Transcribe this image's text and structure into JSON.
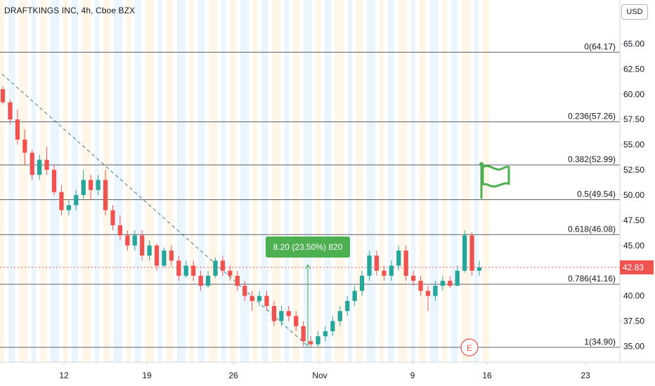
{
  "header": {
    "symbol_line": "DRAFTKINGS INC, 4h, Cboe BZX"
  },
  "currency": "USD",
  "colors": {
    "up": "#26a69a",
    "down": "#ef5350",
    "fib_line": "#5d606b",
    "price_line": "#ef5350",
    "measure": "#4caf50",
    "flag": "#4caf50",
    "earnings": "#ef5350",
    "trend": "#3e7f86"
  },
  "chart_data": {
    "type": "candlestick",
    "title": "DRAFTKINGS INC, 4h, Cboe BZX",
    "x_tick_labels": [
      "12",
      "19",
      "26",
      "Nov",
      "9",
      "16",
      "23"
    ],
    "y_tick_labels": [
      "65.00",
      "62.50",
      "60.00",
      "57.50",
      "55.00",
      "52.50",
      "50.00",
      "47.50",
      "45.00",
      "42.50",
      "40.00",
      "37.50",
      "35.00"
    ],
    "ylim": [
      33.5,
      66.5
    ],
    "last_price": "42.83",
    "fibonacci_levels": [
      {
        "label": "0(64.17)",
        "value": 64.17
      },
      {
        "label": "0.236(57.26)",
        "value": 57.26
      },
      {
        "label": "0.382(52.99)",
        "value": 52.99
      },
      {
        "label": "0.5(49.54)",
        "value": 49.54
      },
      {
        "label": "0.618(46.08)",
        "value": 46.08
      },
      {
        "label": "0.786(41.16)",
        "value": 41.16
      },
      {
        "label": "1(34.90)",
        "value": 34.9
      }
    ],
    "measure_label": "8.20 (23.50%) 820",
    "earnings_marker": "E",
    "candles": [
      [
        60.5,
        60.8,
        59.0,
        59.2
      ],
      [
        59.2,
        59.5,
        57.0,
        57.5
      ],
      [
        57.5,
        58.5,
        55.0,
        55.5
      ],
      [
        55.5,
        56.5,
        53.0,
        54.2
      ],
      [
        54.2,
        54.5,
        51.5,
        52.0
      ],
      [
        52.0,
        54.0,
        51.5,
        53.5
      ],
      [
        53.5,
        54.8,
        52.0,
        52.5
      ],
      [
        52.5,
        53.0,
        50.0,
        50.3
      ],
      [
        50.3,
        51.0,
        48.0,
        48.5
      ],
      [
        48.5,
        49.5,
        48.0,
        49.0
      ],
      [
        49.0,
        50.5,
        48.5,
        50.0
      ],
      [
        50.0,
        52.5,
        49.5,
        51.5
      ],
      [
        51.5,
        52.0,
        49.5,
        50.5
      ],
      [
        50.5,
        52.0,
        50.0,
        51.5
      ],
      [
        51.5,
        52.5,
        48.0,
        48.5
      ],
      [
        48.5,
        49.0,
        46.5,
        47.0
      ],
      [
        47.0,
        48.0,
        45.5,
        46.0
      ],
      [
        46.0,
        46.5,
        44.5,
        45.0
      ],
      [
        45.0,
        46.5,
        44.5,
        46.0
      ],
      [
        46.0,
        46.5,
        43.5,
        44.0
      ],
      [
        44.0,
        45.5,
        43.5,
        45.0
      ],
      [
        45.0,
        45.2,
        42.5,
        43.0
      ],
      [
        43.0,
        44.8,
        42.8,
        44.5
      ],
      [
        44.5,
        45.0,
        43.0,
        43.5
      ],
      [
        43.5,
        44.0,
        41.5,
        42.0
      ],
      [
        42.0,
        43.5,
        41.8,
        43.0
      ],
      [
        43.0,
        43.5,
        41.5,
        42.0
      ],
      [
        42.0,
        42.5,
        40.5,
        41.0
      ],
      [
        41.0,
        42.5,
        40.8,
        42.0
      ],
      [
        42.0,
        43.8,
        41.8,
        43.5
      ],
      [
        43.5,
        44.0,
        42.0,
        42.5
      ],
      [
        42.5,
        43.0,
        41.5,
        42.0
      ],
      [
        42.0,
        42.5,
        40.5,
        41.0
      ],
      [
        41.0,
        41.5,
        39.5,
        40.0
      ],
      [
        40.0,
        40.5,
        38.5,
        39.5
      ],
      [
        39.5,
        40.5,
        39.0,
        40.0
      ],
      [
        40.0,
        40.5,
        38.5,
        39.0
      ],
      [
        39.0,
        39.5,
        37.0,
        37.5
      ],
      [
        37.5,
        39.0,
        37.0,
        38.5
      ],
      [
        38.5,
        39.0,
        37.5,
        38.0
      ],
      [
        38.0,
        38.5,
        36.5,
        37.0
      ],
      [
        37.0,
        37.5,
        35.0,
        35.5
      ],
      [
        35.5,
        36.0,
        34.9,
        35.2
      ],
      [
        35.2,
        36.5,
        35.0,
        36.0
      ],
      [
        36.0,
        37.0,
        35.5,
        36.5
      ],
      [
        36.5,
        38.0,
        36.0,
        37.5
      ],
      [
        37.5,
        39.0,
        37.0,
        38.5
      ],
      [
        38.5,
        40.0,
        38.0,
        39.5
      ],
      [
        39.5,
        41.0,
        39.0,
        40.5
      ],
      [
        40.5,
        42.5,
        40.0,
        42.0
      ],
      [
        42.0,
        44.5,
        41.5,
        44.0
      ],
      [
        44.0,
        44.5,
        42.0,
        42.5
      ],
      [
        42.5,
        43.0,
        41.5,
        42.0
      ],
      [
        42.0,
        43.5,
        41.5,
        43.0
      ],
      [
        43.0,
        45.0,
        42.5,
        44.5
      ],
      [
        44.5,
        45.0,
        41.5,
        42.0
      ],
      [
        42.0,
        42.5,
        41.0,
        41.5
      ],
      [
        41.5,
        42.0,
        40.0,
        40.5
      ],
      [
        40.5,
        41.0,
        38.5,
        40.0
      ],
      [
        40.0,
        41.5,
        39.5,
        41.0
      ],
      [
        41.0,
        42.0,
        40.5,
        41.5
      ],
      [
        41.5,
        42.0,
        40.8,
        41.0
      ],
      [
        41.0,
        43.0,
        41.0,
        42.5
      ],
      [
        42.5,
        46.5,
        42.3,
        46.0
      ],
      [
        46.0,
        46.3,
        42.0,
        42.5
      ],
      [
        42.5,
        43.5,
        42.0,
        42.83
      ]
    ],
    "grid": "vertical session bands",
    "legend": "none"
  }
}
